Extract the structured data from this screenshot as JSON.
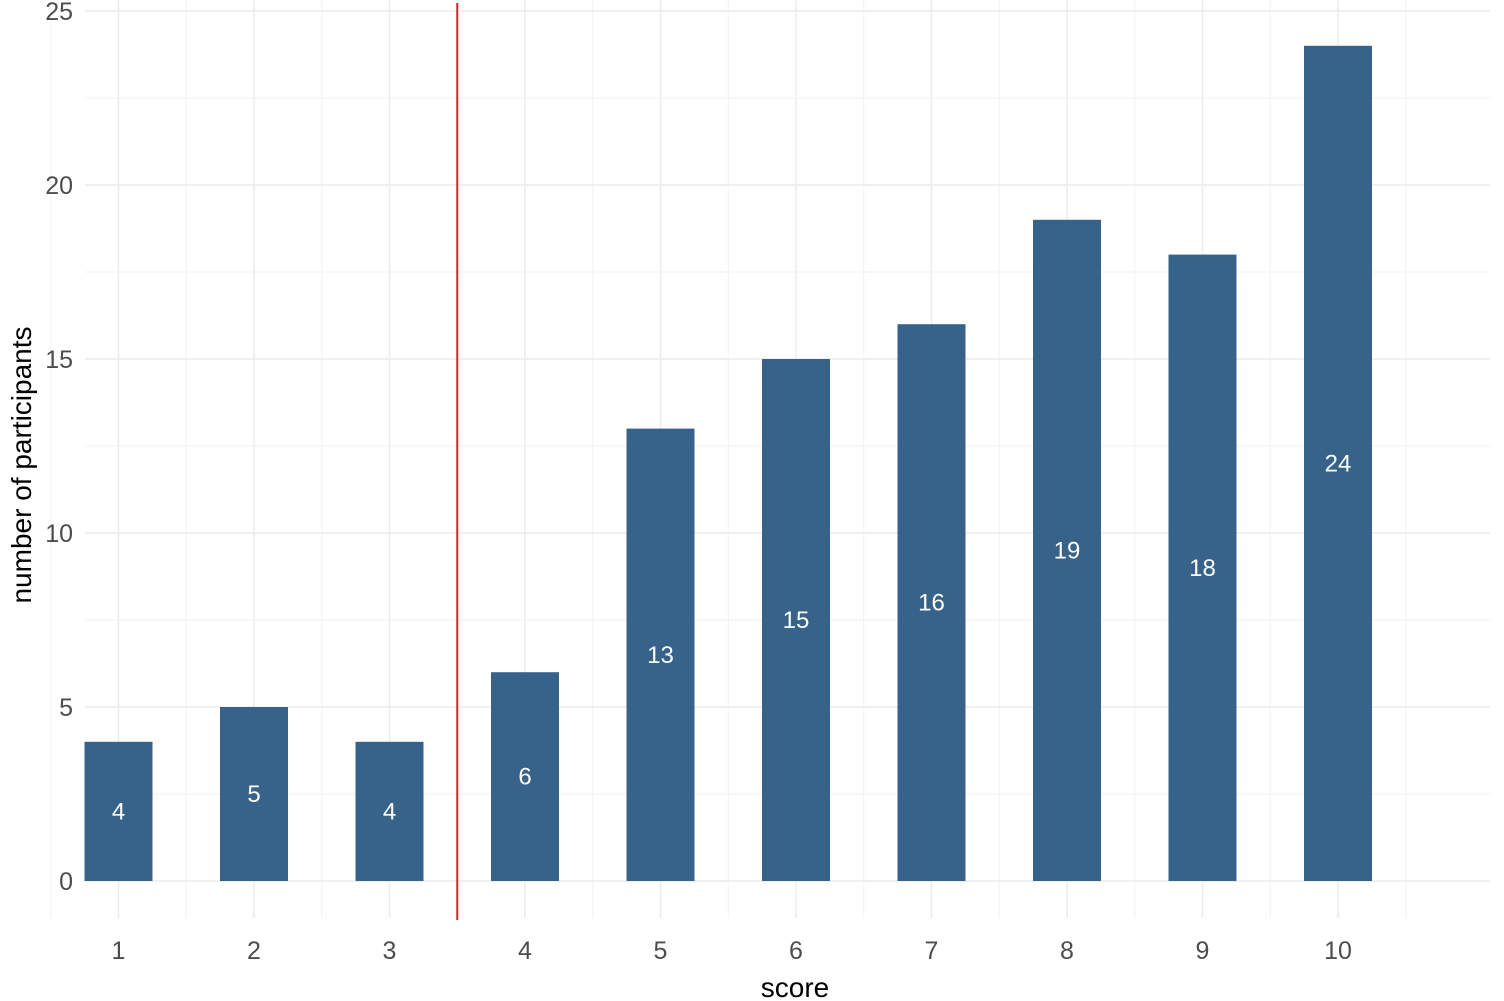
{
  "chart_data": {
    "type": "bar",
    "categories": [
      "1",
      "2",
      "3",
      "4",
      "5",
      "6",
      "7",
      "8",
      "9",
      "10"
    ],
    "values": [
      4,
      5,
      4,
      6,
      13,
      15,
      16,
      19,
      18,
      24
    ],
    "data_labels": [
      "4",
      "5",
      "4",
      "6",
      "13",
      "15",
      "16",
      "19",
      "18",
      "24"
    ],
    "xlabel": "score",
    "ylabel": "number of participants",
    "ylim": [
      0,
      25
    ],
    "yticks": [
      0,
      5,
      10,
      15,
      20,
      25
    ],
    "ytick_labels": [
      "0",
      "5",
      "10",
      "15",
      "20",
      "25"
    ],
    "grid": true,
    "legend": "none",
    "bar_color": "#37638a",
    "reference_line": {
      "orientation": "vertical",
      "x": 3.5,
      "color": "#e02424"
    }
  }
}
